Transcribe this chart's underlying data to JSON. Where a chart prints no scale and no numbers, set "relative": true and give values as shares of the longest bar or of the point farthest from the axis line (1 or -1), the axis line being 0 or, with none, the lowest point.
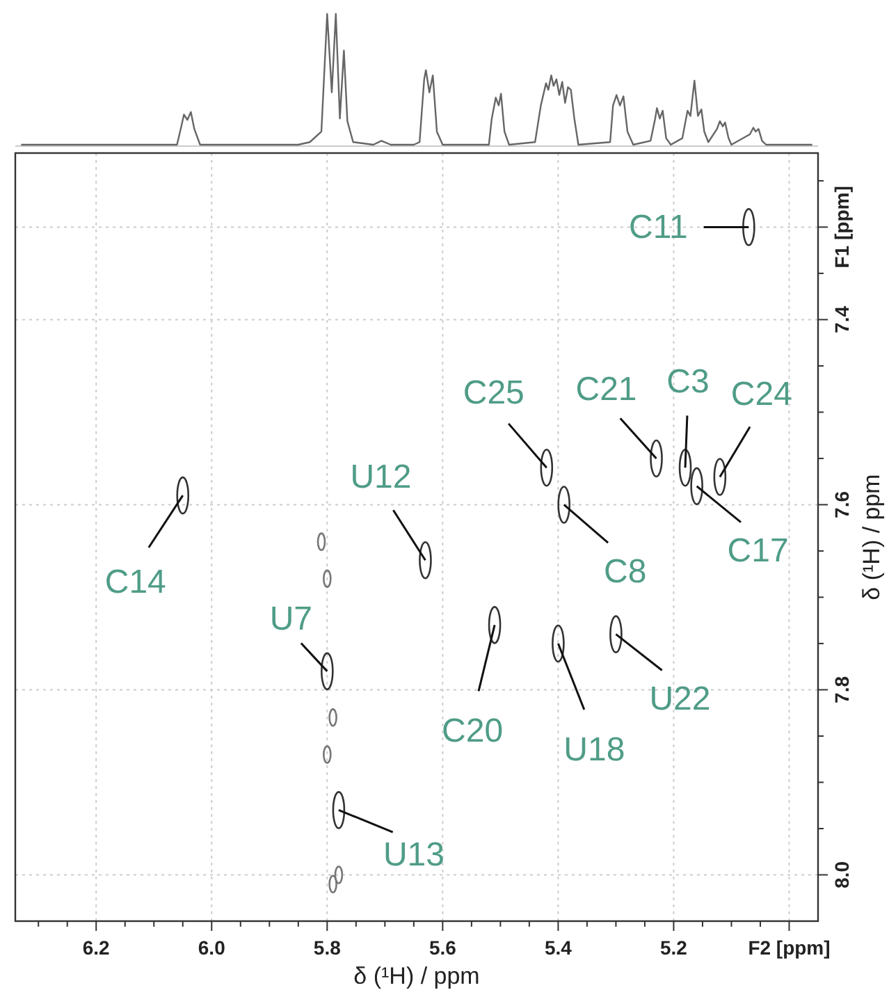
{
  "chart_data": [
    {
      "type": "line",
      "relative": true,
      "xlim": [
        6.34,
        4.95
      ],
      "color": "#666666",
      "x": [
        6.33,
        6.09,
        6.06,
        6.052,
        6.048,
        6.042,
        6.036,
        6.03,
        6.02,
        5.85,
        5.83,
        5.81,
        5.8,
        5.792,
        5.785,
        5.778,
        5.771,
        5.765,
        5.755,
        5.72,
        5.706,
        5.69,
        5.65,
        5.64,
        5.632,
        5.629,
        5.623,
        5.617,
        5.61,
        5.6,
        5.52,
        5.515,
        5.508,
        5.503,
        5.499,
        5.493,
        5.485,
        5.44,
        5.43,
        5.421,
        5.417,
        5.412,
        5.408,
        5.403,
        5.398,
        5.393,
        5.388,
        5.383,
        5.378,
        5.372,
        5.365,
        5.31,
        5.305,
        5.299,
        5.293,
        5.287,
        5.28,
        5.27,
        5.24,
        5.232,
        5.229,
        5.224,
        5.219,
        5.213,
        5.205,
        5.185,
        5.176,
        5.171,
        5.164,
        5.158,
        5.152,
        5.147,
        5.14,
        5.125,
        5.12,
        5.115,
        5.111,
        5.105,
        5.1,
        5.068,
        5.062,
        5.058,
        5.053,
        5.047,
        5.04,
        4.96
      ],
      "values": [
        0,
        0,
        0,
        0.15,
        0.23,
        0.19,
        0.25,
        0.12,
        0,
        0,
        0.02,
        0.1,
        1,
        0.4,
        1,
        0.2,
        0.72,
        0.18,
        0.02,
        0,
        0.03,
        0,
        0,
        0.02,
        0.5,
        0.57,
        0.4,
        0.53,
        0.1,
        0,
        0,
        0.2,
        0.36,
        0.3,
        0.39,
        0.1,
        0,
        0.02,
        0.3,
        0.47,
        0.42,
        0.53,
        0.45,
        0.5,
        0.38,
        0.48,
        0.32,
        0.44,
        0.42,
        0.2,
        0,
        0.02,
        0.3,
        0.38,
        0.3,
        0.37,
        0.1,
        0,
        0.03,
        0.2,
        0.28,
        0.2,
        0.26,
        0.05,
        0,
        0.05,
        0.26,
        0.22,
        0.49,
        0.22,
        0.27,
        0.1,
        0.02,
        0.12,
        0.18,
        0.14,
        0.17,
        0.05,
        0,
        0.08,
        0.13,
        0.1,
        0.12,
        0.03,
        0,
        0
      ]
    },
    {
      "type": "scatter",
      "xlabel": "δ (¹H) / ppm",
      "ylabel": "δ (¹H) / ppm",
      "grid": true,
      "xlim": [
        6.34,
        4.95
      ],
      "ylim": [
        8.05,
        7.22
      ],
      "xticks": [
        {
          "value": 6.3,
          "label": null
        },
        {
          "value": 6.25,
          "label": null
        },
        6.2,
        {
          "value": 6.15,
          "label": null
        },
        {
          "value": 6.1,
          "label": null
        },
        {
          "value": 6.05,
          "label": null
        },
        {
          "value": 6.0,
          "label": "6.0"
        },
        {
          "value": 5.95,
          "label": null
        },
        {
          "value": 5.9,
          "label": null
        },
        {
          "value": 5.85,
          "label": null
        },
        5.8,
        {
          "value": 5.75,
          "label": null
        },
        {
          "value": 5.7,
          "label": null
        },
        {
          "value": 5.65,
          "label": null
        },
        5.6,
        {
          "value": 5.55,
          "label": null
        },
        {
          "value": 5.5,
          "label": null
        },
        {
          "value": 5.45,
          "label": null
        },
        5.4,
        {
          "value": 5.35,
          "label": null
        },
        {
          "value": 5.3,
          "label": null
        },
        {
          "value": 5.25,
          "label": null
        },
        5.2,
        {
          "value": 5.15,
          "label": null
        },
        {
          "value": 5.1,
          "label": null
        },
        {
          "value": 5.05,
          "label": null
        },
        {
          "value": 5.0,
          "label": "F2 [ppm]"
        }
      ],
      "yticks": [
        {
          "value": 7.25,
          "label": null
        },
        {
          "value": 7.3,
          "label": "F1 [ppm]"
        },
        {
          "value": 7.35,
          "label": null
        },
        7.4,
        {
          "value": 7.45,
          "label": null
        },
        {
          "value": 7.5,
          "label": null
        },
        {
          "value": 7.55,
          "label": null
        },
        7.6,
        {
          "value": 7.65,
          "label": null
        },
        {
          "value": 7.7,
          "label": null
        },
        {
          "value": 7.75,
          "label": null
        },
        7.8,
        {
          "value": 7.85,
          "label": null
        },
        {
          "value": 7.9,
          "label": null
        },
        {
          "value": 7.95,
          "label": null
        },
        {
          "value": 8.0,
          "label": "8.0"
        }
      ],
      "series": [
        {
          "color": "#333333",
          "x": [
            5.07,
            6.05,
            5.63,
            5.42,
            5.39,
            5.23,
            5.18,
            5.12,
            5.16,
            5.51,
            5.4,
            5.3,
            5.8,
            5.78
          ],
          "values": [
            7.3,
            7.59,
            7.66,
            7.56,
            7.6,
            7.55,
            7.56,
            7.57,
            7.58,
            7.73,
            7.75,
            7.74,
            7.78,
            7.93
          ]
        },
        {
          "color": "#777777",
          "x": [
            5.81,
            5.8,
            5.79,
            5.8,
            5.79,
            5.78
          ],
          "values": [
            7.64,
            7.68,
            7.83,
            7.87,
            8.01,
            8.0
          ]
        }
      ],
      "annotations": [
        {
          "text": "C11",
          "x": 5.07,
          "y": 7.3
        },
        {
          "text": "C14",
          "x": 6.05,
          "y": 7.59
        },
        {
          "text": "U12",
          "x": 5.63,
          "y": 7.66
        },
        {
          "text": "C25",
          "x": 5.42,
          "y": 7.56
        },
        {
          "text": "C8",
          "x": 5.39,
          "y": 7.6
        },
        {
          "text": "C21",
          "x": 5.23,
          "y": 7.55
        },
        {
          "text": "C3",
          "x": 5.18,
          "y": 7.56
        },
        {
          "text": "C24",
          "x": 5.12,
          "y": 7.57
        },
        {
          "text": "C17",
          "x": 5.16,
          "y": 7.58
        },
        {
          "text": "C20",
          "x": 5.51,
          "y": 7.73
        },
        {
          "text": "U18",
          "x": 5.4,
          "y": 7.75
        },
        {
          "text": "U22",
          "x": 5.3,
          "y": 7.74
        },
        {
          "text": "U7",
          "x": 5.8,
          "y": 7.78
        },
        {
          "text": "U13",
          "x": 5.78,
          "y": 7.93
        }
      ]
    }
  ]
}
